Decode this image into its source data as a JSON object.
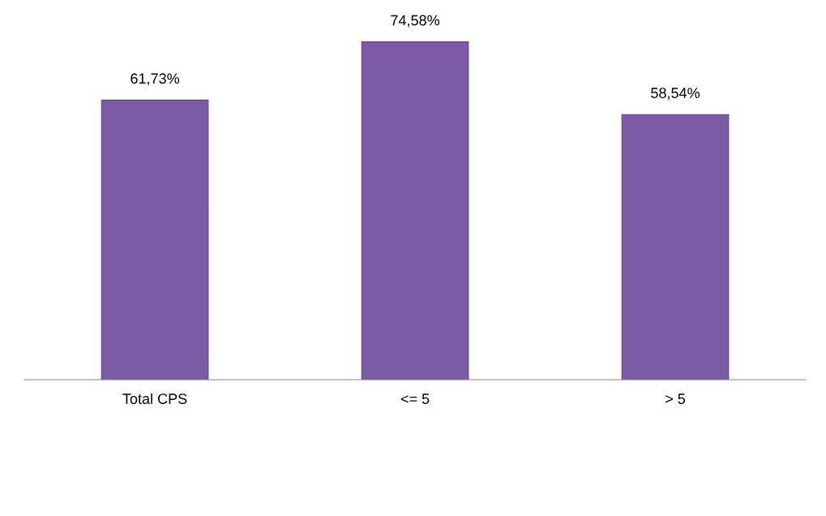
{
  "chart_data": {
    "type": "bar",
    "categories": [
      "Total CPS",
      "<= 5",
      "> 5"
    ],
    "values": [
      61.73,
      74.58,
      58.54
    ],
    "value_labels": [
      "61,73%",
      "74,58%",
      "58,54%"
    ],
    "color": "#7b5aa6",
    "tick_labels": "x",
    "grid": false,
    "legend": false
  }
}
